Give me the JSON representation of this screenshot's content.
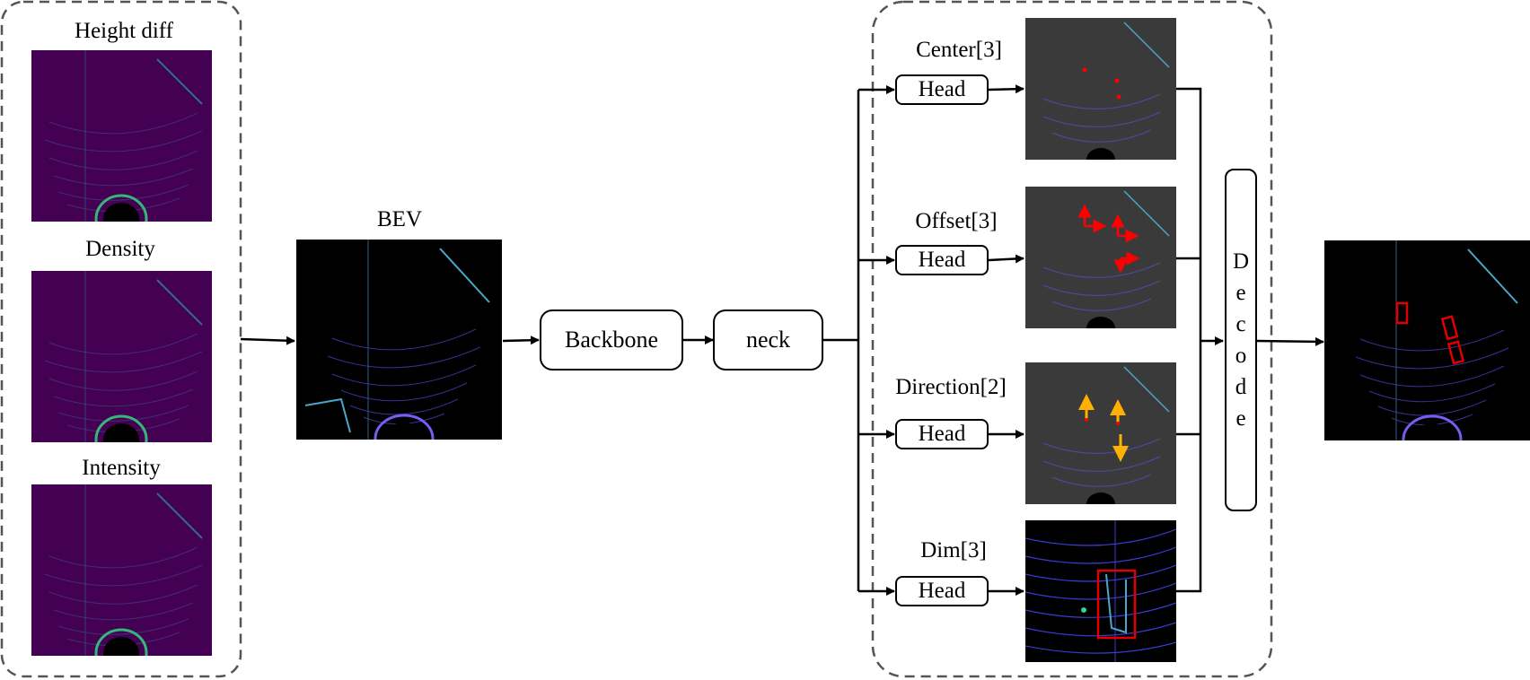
{
  "inputs": {
    "height_diff": "Height diff",
    "density": "Density",
    "intensity": "Intensity"
  },
  "bev_label": "BEV",
  "backbone_label": "Backbone",
  "neck_label": "neck",
  "heads": [
    {
      "title": "Center[3]",
      "button": "Head"
    },
    {
      "title": "Offset[3]",
      "button": "Head"
    },
    {
      "title": "Direction[2]",
      "button": "Head"
    },
    {
      "title": "Dim[3]",
      "button": "Head"
    }
  ],
  "decode_letters": [
    "D",
    "e",
    "c",
    "o",
    "d",
    "e"
  ],
  "colors": {
    "feature_bg": "#440154",
    "bev_bg": "#000000",
    "head_map_bg": "#3a3a3a",
    "marker_red": "#ff0000",
    "marker_orange": "#ffb000",
    "box_red": "#e00000"
  }
}
